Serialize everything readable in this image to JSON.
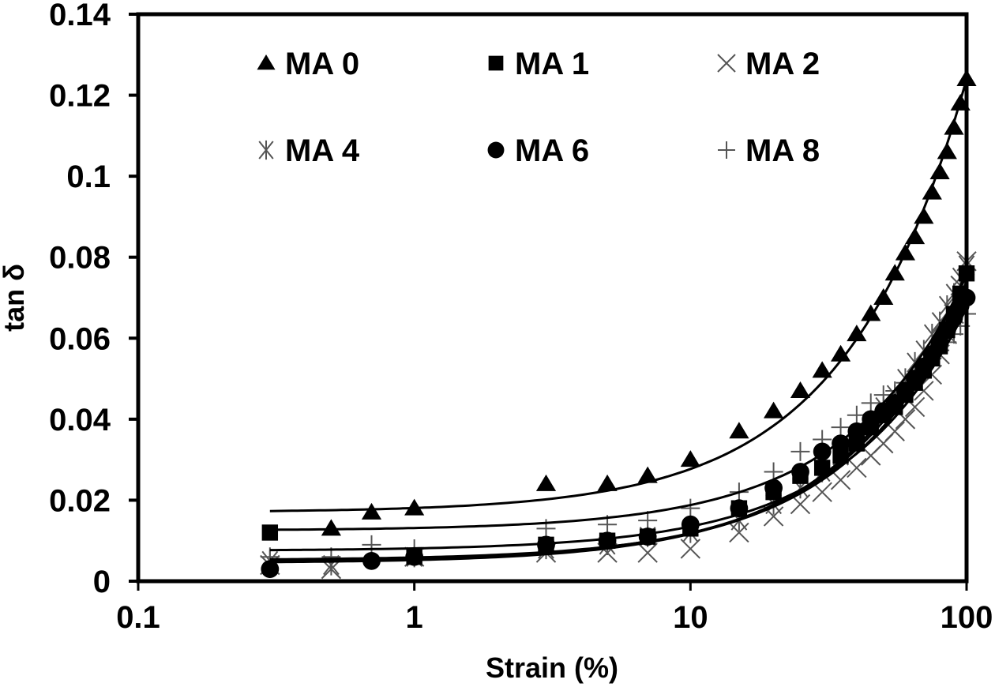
{
  "chart_data": {
    "type": "scatter",
    "title": "",
    "xlabel": "Strain (%)",
    "ylabel": "tan δ",
    "xscale": "log",
    "xlim": [
      0.1,
      100
    ],
    "ylim": [
      0,
      0.14
    ],
    "x_ticks": [
      0.1,
      1,
      10,
      100
    ],
    "x_tick_labels": [
      "0.1",
      "1",
      "10",
      "100"
    ],
    "y_ticks": [
      0,
      0.02,
      0.04,
      0.06,
      0.08,
      0.1,
      0.12,
      0.14
    ],
    "y_tick_labels": [
      "0",
      "0.02",
      "0.04",
      "0.06",
      "0.08",
      "0.1",
      "0.12",
      "0.14"
    ],
    "grid": false,
    "legend_position": "top",
    "series": [
      {
        "name": "MA 0",
        "marker": "triangle",
        "color": "#000000",
        "x": [
          0.5,
          0.7,
          1,
          3,
          5,
          7,
          10,
          15,
          20,
          25,
          30,
          35,
          40,
          45,
          50,
          55,
          60,
          65,
          70,
          75,
          80,
          85,
          90,
          95,
          100
        ],
        "y": [
          0.013,
          0.017,
          0.018,
          0.024,
          0.024,
          0.026,
          0.03,
          0.037,
          0.042,
          0.047,
          0.052,
          0.056,
          0.061,
          0.066,
          0.07,
          0.076,
          0.081,
          0.085,
          0.09,
          0.096,
          0.101,
          0.106,
          0.112,
          0.118,
          0.124
        ],
        "fit": [
          0.017,
          0.0175,
          0.0178,
          0.0195,
          0.021,
          0.0228,
          0.026,
          0.031,
          0.036,
          0.042,
          0.048,
          0.054,
          0.06,
          0.066,
          0.072,
          0.078,
          0.084,
          0.089,
          0.095,
          0.1,
          0.105,
          0.11,
          0.115,
          0.119,
          0.123
        ],
        "fit_x": [
          0.3,
          0.5,
          0.7,
          2,
          3,
          4,
          6,
          10,
          14,
          19,
          24,
          29,
          35,
          40,
          46,
          52,
          58,
          63,
          69,
          75,
          80,
          86,
          91,
          96,
          100
        ]
      },
      {
        "name": "MA 1",
        "marker": "square",
        "color": "#000000",
        "x": [
          0.3,
          1,
          3,
          5,
          7,
          10,
          15,
          20,
          25,
          30,
          35,
          40,
          45,
          50,
          55,
          60,
          65,
          70,
          75,
          80,
          85,
          90,
          95,
          100
        ],
        "y": [
          0.012,
          0.006,
          0.009,
          0.01,
          0.011,
          0.013,
          0.018,
          0.022,
          0.026,
          0.028,
          0.031,
          0.034,
          0.038,
          0.041,
          0.043,
          0.046,
          0.049,
          0.052,
          0.055,
          0.058,
          0.062,
          0.066,
          0.071,
          0.076
        ]
      },
      {
        "name": "MA 2",
        "marker": "x",
        "color": "#555555",
        "x": [
          0.3,
          0.5,
          1,
          3,
          5,
          7,
          10,
          15,
          20,
          25,
          30,
          35,
          40,
          45,
          50,
          55,
          60,
          65,
          70,
          75,
          80,
          85,
          90,
          95,
          100
        ],
        "y": [
          0.004,
          0.003,
          0.006,
          0.007,
          0.007,
          0.007,
          0.008,
          0.012,
          0.016,
          0.019,
          0.022,
          0.025,
          0.028,
          0.031,
          0.034,
          0.037,
          0.04,
          0.043,
          0.047,
          0.051,
          0.056,
          0.061,
          0.066,
          0.073,
          0.079
        ]
      },
      {
        "name": "MA 4",
        "marker": "asterisk",
        "color": "#555555",
        "x": [
          0.3,
          0.5,
          1,
          3,
          5,
          7,
          10,
          15,
          20,
          25,
          30,
          35,
          40,
          45,
          50,
          55,
          60,
          65,
          70,
          75,
          80,
          85,
          90,
          95,
          100
        ],
        "y": [
          0.005,
          0.004,
          0.006,
          0.008,
          0.009,
          0.011,
          0.012,
          0.015,
          0.019,
          0.023,
          0.027,
          0.031,
          0.035,
          0.039,
          0.043,
          0.046,
          0.05,
          0.054,
          0.057,
          0.061,
          0.064,
          0.068,
          0.071,
          0.075,
          0.078
        ]
      },
      {
        "name": "MA 6",
        "marker": "circle",
        "color": "#000000",
        "x": [
          0.3,
          0.7,
          1,
          3,
          5,
          7,
          10,
          15,
          20,
          25,
          30,
          35,
          40,
          45,
          50,
          55,
          60,
          65,
          70,
          75,
          80,
          85,
          90,
          95,
          100
        ],
        "y": [
          0.003,
          0.005,
          0.006,
          0.009,
          0.01,
          0.011,
          0.014,
          0.018,
          0.023,
          0.027,
          0.032,
          0.034,
          0.037,
          0.04,
          0.042,
          0.044,
          0.047,
          0.05,
          0.053,
          0.056,
          0.059,
          0.062,
          0.065,
          0.068,
          0.07
        ]
      },
      {
        "name": "MA 8",
        "marker": "plus",
        "color": "#555555",
        "x": [
          0.3,
          0.5,
          0.7,
          1,
          3,
          5,
          7,
          10,
          15,
          20,
          25,
          30,
          35,
          40,
          45,
          50,
          55,
          60,
          65,
          70,
          75,
          80,
          85,
          90,
          95,
          100
        ],
        "y": [
          0.006,
          0.006,
          0.009,
          0.008,
          0.013,
          0.014,
          0.015,
          0.018,
          0.022,
          0.027,
          0.032,
          0.035,
          0.038,
          0.041,
          0.044,
          0.046,
          0.047,
          0.049,
          0.051,
          0.053,
          0.055,
          0.057,
          0.059,
          0.061,
          0.063,
          0.066
        ]
      }
    ],
    "fit_curves": [
      {
        "series": "MA 0",
        "a": 0.017,
        "b": 0.00107
      },
      {
        "series": "MA 1",
        "a": 0.0125,
        "b": 0.00063
      },
      {
        "series": "MA 2",
        "a": 0.0045,
        "b": 0.00072
      },
      {
        "series": "MA 4",
        "a": 0.005,
        "b": 0.00069
      },
      {
        "series": "MA 6",
        "a": 0.0052,
        "b": 0.00066
      },
      {
        "series": "MA 8",
        "a": 0.0075,
        "b": 0.0006
      }
    ]
  }
}
